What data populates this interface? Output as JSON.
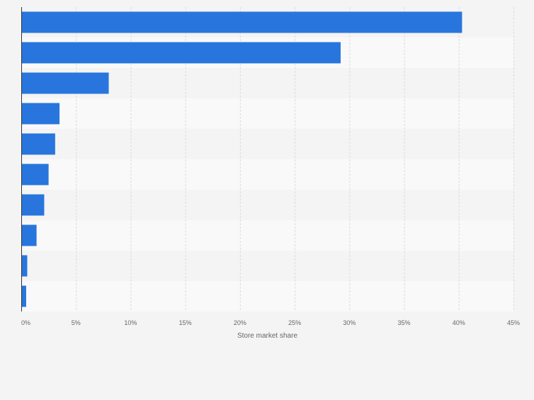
{
  "chart_data": {
    "type": "bar",
    "orientation": "horizontal",
    "title": "",
    "xlabel": "Store market share",
    "ylabel": "",
    "xlim": [
      0,
      45
    ],
    "x_ticks": [
      0,
      5,
      10,
      15,
      20,
      25,
      30,
      35,
      40,
      45
    ],
    "x_tick_labels": [
      "0%",
      "5%",
      "10%",
      "15%",
      "20%",
      "25%",
      "30%",
      "35%",
      "40%",
      "45%"
    ],
    "categories": [
      "",
      "",
      "",
      "",
      "",
      "",
      "",
      "",
      "",
      ""
    ],
    "values": [
      40.3,
      29.2,
      8.0,
      3.5,
      3.1,
      2.5,
      2.1,
      1.4,
      0.55,
      0.45
    ],
    "grid": true,
    "bar_color": "#2876dd",
    "band_colors": [
      "#f4f4f4",
      "#f9f9f9"
    ]
  }
}
